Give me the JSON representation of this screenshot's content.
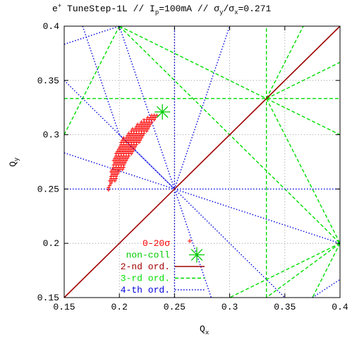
{
  "chart_data": {
    "type": "scatter",
    "title": {
      "prefix": "e",
      "prefix_sup": "+",
      "part1": " TuneStep-1L // I",
      "part1_sub": "p",
      "part2": "=100mA // σ",
      "part2_sub": "y",
      "part3": "/σ",
      "part3_sub": "x",
      "part4": "=0.271"
    },
    "xlabel": {
      "main": "Q",
      "sub": "x"
    },
    "ylabel": {
      "main": "Q",
      "sub": "y"
    },
    "xlim": [
      0.15,
      0.4
    ],
    "ylim": [
      0.15,
      0.4
    ],
    "grid": true,
    "legend_placement": "bottom-left",
    "x_ticks": [
      0.15,
      0.2,
      0.25,
      0.3,
      0.35,
      0.4
    ],
    "x_tick_labels": [
      "0.15",
      "0.2",
      "0.25",
      "0.3",
      "0.35",
      "0.4"
    ],
    "y_ticks": [
      0.15,
      0.2,
      0.25,
      0.3,
      0.35,
      0.4
    ],
    "y_tick_labels": [
      "0.15",
      "0.2",
      "0.25",
      "0.3",
      "0.35",
      "0.4"
    ],
    "legend": [
      {
        "label": "0-20σ",
        "color": "#ff0000",
        "sample": "cross"
      },
      {
        "label": "non-coll",
        "color": "#00cc00",
        "sample": "star"
      },
      {
        "label": "2-nd ord.",
        "color": "#a00000",
        "sample": "solid"
      },
      {
        "label": "3-rd ord.",
        "color": "#00dd00",
        "sample": "dashed"
      },
      {
        "label": "4-th ord.",
        "color": "#0000dd",
        "sample": "dotted"
      }
    ],
    "colors": {
      "amplitude_points": "#ff0000",
      "non_coll": "#00cc00",
      "second_order": "#a00000",
      "third_order": "#00dd00",
      "fourth_order": "#0000dd",
      "axes": "#000000"
    },
    "non_coll_point": {
      "x": 0.239,
      "y": 0.321
    },
    "amplitude_fan": {
      "apex": {
        "x": 0.236,
        "y": 0.319
      },
      "amplitude_range_sigma": [
        0,
        20
      ],
      "boundary": [
        {
          "x": 0.237,
          "y": 0.32
        },
        {
          "x": 0.232,
          "y": 0.313
        },
        {
          "x": 0.226,
          "y": 0.304
        },
        {
          "x": 0.219,
          "y": 0.293
        },
        {
          "x": 0.211,
          "y": 0.281
        },
        {
          "x": 0.203,
          "y": 0.268
        },
        {
          "x": 0.195,
          "y": 0.256
        },
        {
          "x": 0.189,
          "y": 0.247
        },
        {
          "x": 0.191,
          "y": 0.26
        },
        {
          "x": 0.194,
          "y": 0.276
        },
        {
          "x": 0.2,
          "y": 0.292
        },
        {
          "x": 0.21,
          "y": 0.305
        },
        {
          "x": 0.222,
          "y": 0.314
        },
        {
          "x": 0.231,
          "y": 0.319
        }
      ]
    },
    "resonance_lines": {
      "second_order": [
        {
          "x1": 0.15,
          "y1": 0.15,
          "x2": 0.4,
          "y2": 0.4
        }
      ],
      "third_order": [
        {
          "x1": 0.3333,
          "y1": 0.15,
          "x2": 0.3333,
          "y2": 0.4
        },
        {
          "x1": 0.15,
          "y1": 0.3333,
          "x2": 0.4,
          "y2": 0.3333
        },
        {
          "x1": 0.15,
          "y1": 0.3,
          "x2": 0.2,
          "y2": 0.4
        },
        {
          "x1": 0.2,
          "y1": 0.4,
          "x2": 0.3333,
          "y2": 0.3333
        },
        {
          "x1": 0.2,
          "y1": 0.4,
          "x2": 0.4,
          "y2": 0.2
        },
        {
          "x1": 0.3333,
          "y1": 0.3333,
          "x2": 0.4,
          "y2": 0.4
        },
        {
          "x1": 0.3333,
          "y1": 0.3333,
          "x2": 0.4,
          "y2": 0.3667
        },
        {
          "x1": 0.3333,
          "y1": 0.3333,
          "x2": 0.4,
          "y2": 0.3
        },
        {
          "x1": 0.3333,
          "y1": 0.3333,
          "x2": 0.4,
          "y2": 0.2
        },
        {
          "x1": 0.3333,
          "y1": 0.3333,
          "x2": 0.3667,
          "y2": 0.4
        },
        {
          "x1": 0.4,
          "y1": 0.2,
          "x2": 0.3,
          "y2": 0.15
        },
        {
          "x1": 0.4,
          "y1": 0.2,
          "x2": 0.3333,
          "y2": 0.15
        },
        {
          "x1": 0.4,
          "y1": 0.2,
          "x2": 0.375,
          "y2": 0.15
        }
      ],
      "fourth_order": [
        {
          "x1": 0.25,
          "y1": 0.15,
          "x2": 0.25,
          "y2": 0.4
        },
        {
          "x1": 0.15,
          "y1": 0.25,
          "x2": 0.4,
          "y2": 0.25
        },
        {
          "x1": 0.15,
          "y1": 0.35,
          "x2": 0.25,
          "y2": 0.25
        },
        {
          "x1": 0.15,
          "y1": 0.2833,
          "x2": 0.25,
          "y2": 0.25
        },
        {
          "x1": 0.25,
          "y1": 0.25,
          "x2": 0.3,
          "y2": 0.4
        },
        {
          "x1": 0.2,
          "y1": 0.4,
          "x2": 0.25,
          "y2": 0.25
        },
        {
          "x1": 0.25,
          "y1": 0.25,
          "x2": 0.35,
          "y2": 0.15
        },
        {
          "x1": 0.25,
          "y1": 0.25,
          "x2": 0.4,
          "y2": 0.2
        },
        {
          "x1": 0.15,
          "y1": 0.3833,
          "x2": 0.2,
          "y2": 0.4
        },
        {
          "x1": 0.1667,
          "y1": 0.4,
          "x2": 0.2,
          "y2": 0.3
        },
        {
          "x1": 0.2,
          "y1": 0.3,
          "x2": 0.25,
          "y2": 0.25
        },
        {
          "x1": 0.25,
          "y1": 0.25,
          "x2": 0.2833,
          "y2": 0.15
        },
        {
          "x1": 0.375,
          "y1": 0.15,
          "x2": 0.4,
          "y2": 0.1667
        }
      ]
    }
  }
}
